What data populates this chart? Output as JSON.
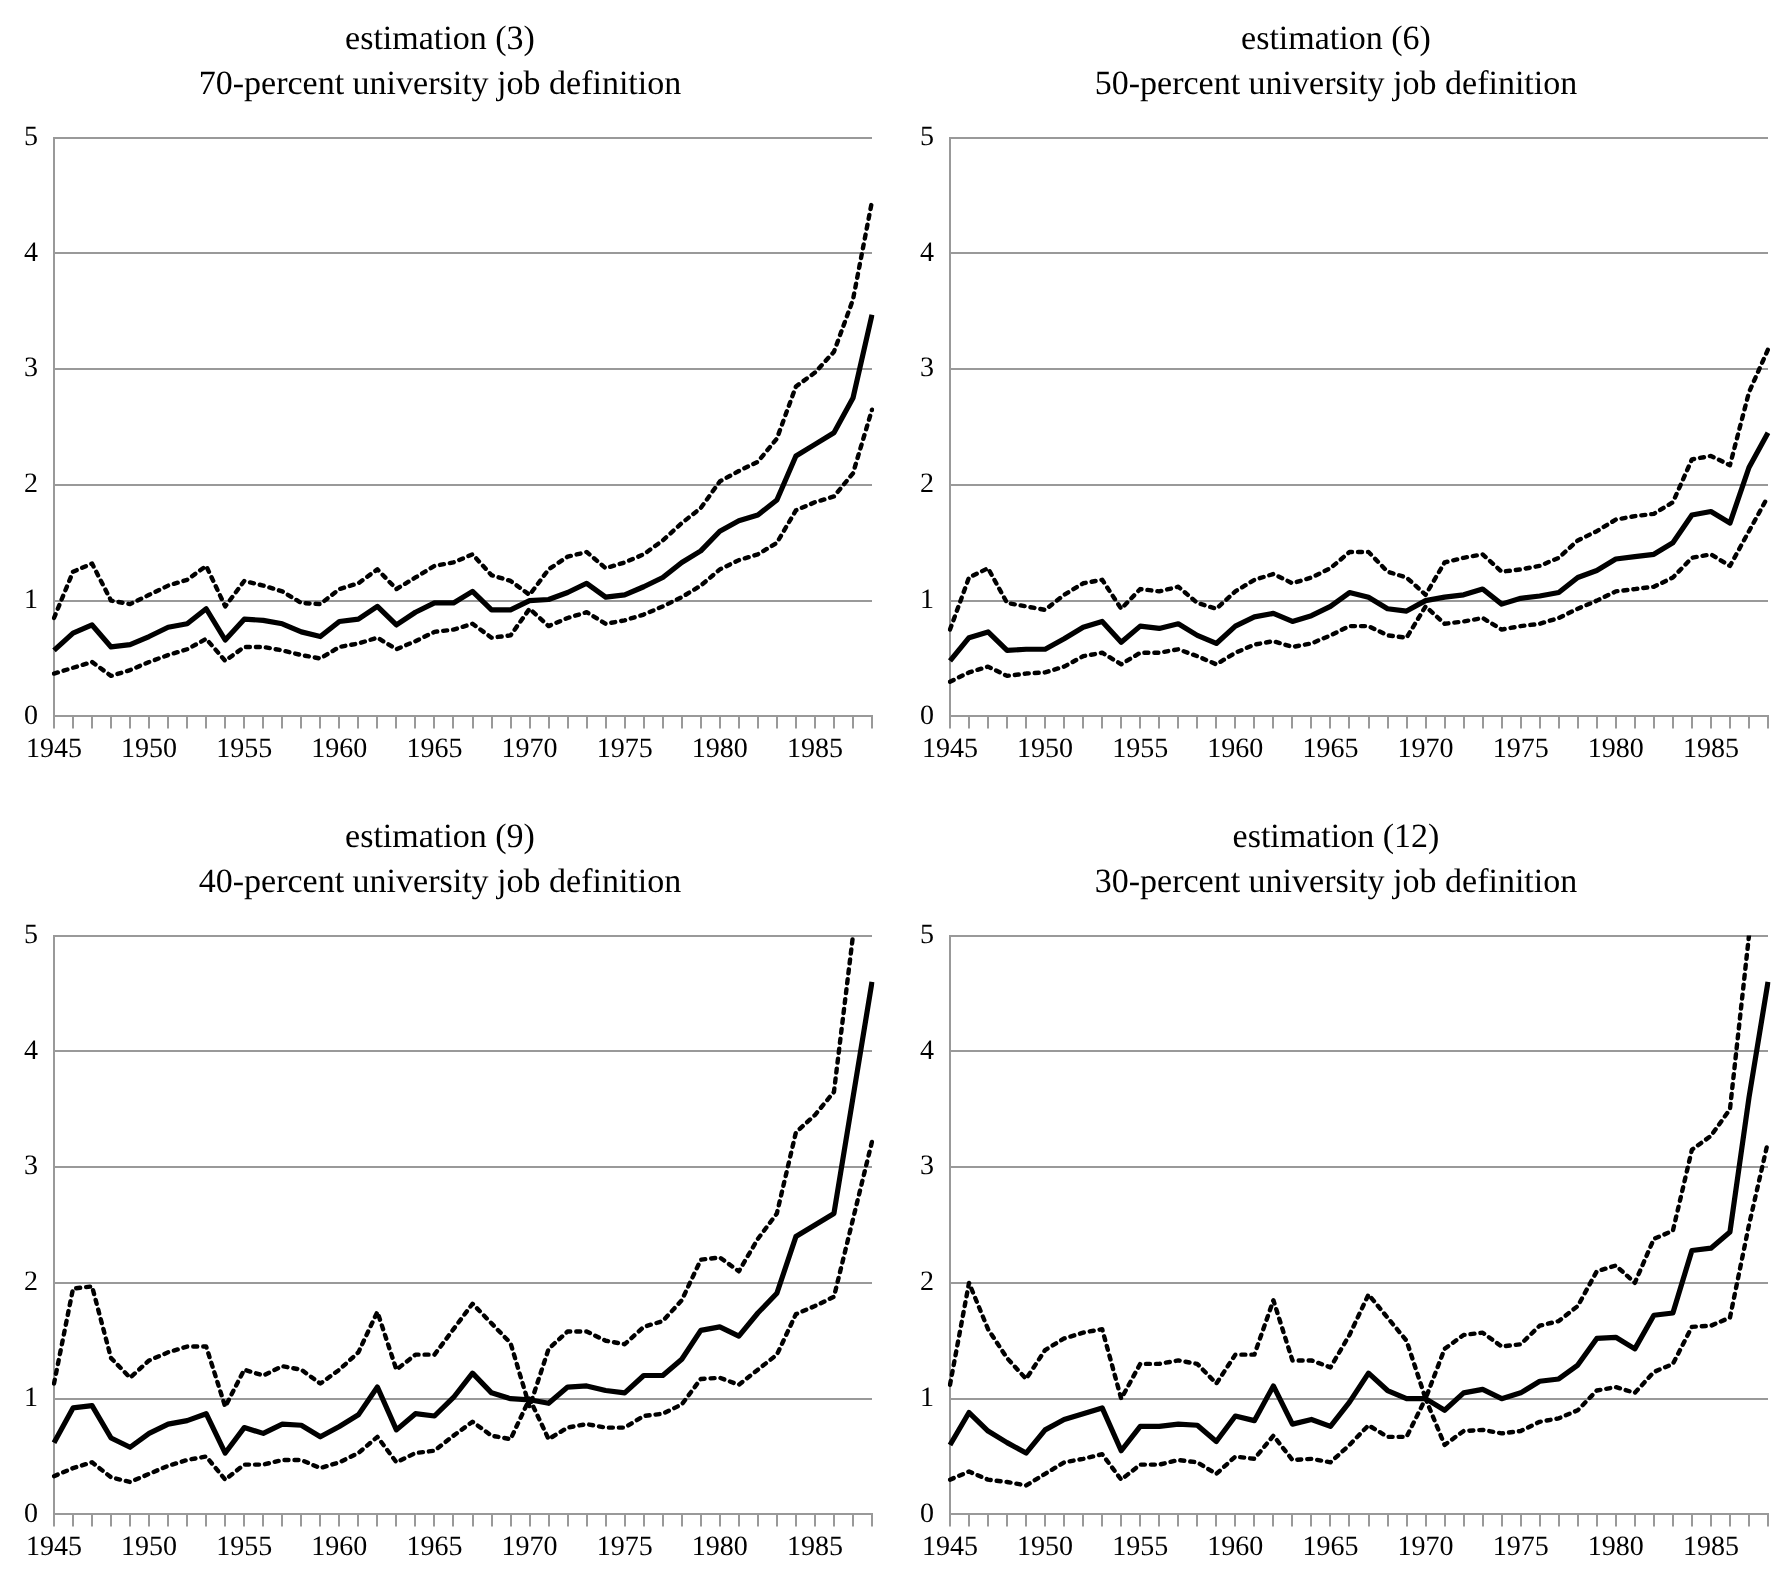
{
  "chart_data": [
    {
      "type": "line",
      "title": "estimation (3)",
      "subtitle": "70-percent university job definition",
      "categories": [
        "1945",
        null,
        null,
        null,
        null,
        "1950",
        null,
        null,
        null,
        null,
        "1955",
        null,
        null,
        null,
        null,
        "1960",
        null,
        null,
        null,
        null,
        "1965",
        null,
        null,
        null,
        null,
        "1970",
        null,
        null,
        null,
        null,
        "1975",
        null,
        null,
        null,
        null,
        "1980",
        null,
        null,
        null,
        null,
        "1985",
        null,
        null,
        null
      ],
      "ylim": [
        0,
        5
      ],
      "yticks": [
        0,
        1,
        2,
        3,
        4,
        5
      ],
      "grid": "y",
      "marker": "none",
      "series": [
        {
          "color": "#000000",
          "line_style": "solid",
          "values": [
            0.57,
            0.72,
            0.79,
            0.6,
            0.62,
            0.69,
            0.77,
            0.8,
            0.93,
            0.66,
            0.84,
            0.83,
            0.8,
            0.73,
            0.69,
            0.82,
            0.84,
            0.95,
            0.79,
            0.9,
            0.98,
            0.98,
            1.08,
            0.92,
            0.92,
            1.0,
            1.01,
            1.07,
            1.15,
            1.03,
            1.05,
            1.12,
            1.2,
            1.33,
            1.43,
            1.6,
            1.69,
            1.74,
            1.87,
            2.25,
            2.35,
            2.45,
            2.75,
            3.47
          ]
        },
        {
          "color": "#000000",
          "line_style": "dotted",
          "values": [
            0.85,
            1.25,
            1.32,
            1.0,
            0.97,
            1.05,
            1.13,
            1.18,
            1.3,
            0.95,
            1.17,
            1.13,
            1.08,
            0.98,
            0.97,
            1.1,
            1.15,
            1.27,
            1.1,
            1.2,
            1.3,
            1.33,
            1.4,
            1.22,
            1.17,
            1.05,
            1.27,
            1.38,
            1.42,
            1.28,
            1.33,
            1.4,
            1.52,
            1.67,
            1.8,
            2.03,
            2.12,
            2.2,
            2.4,
            2.85,
            2.97,
            3.15,
            3.6,
            4.45
          ]
        },
        {
          "color": "#000000",
          "line_style": "dotted",
          "values": [
            0.37,
            0.42,
            0.47,
            0.35,
            0.4,
            0.47,
            0.53,
            0.58,
            0.67,
            0.48,
            0.6,
            0.6,
            0.57,
            0.53,
            0.5,
            0.6,
            0.63,
            0.68,
            0.58,
            0.65,
            0.73,
            0.75,
            0.8,
            0.68,
            0.7,
            0.93,
            0.78,
            0.85,
            0.9,
            0.8,
            0.83,
            0.88,
            0.95,
            1.03,
            1.13,
            1.27,
            1.35,
            1.4,
            1.5,
            1.78,
            1.85,
            1.9,
            2.1,
            2.65
          ]
        }
      ]
    },
    {
      "type": "line",
      "title": "estimation (6)",
      "subtitle": "50-percent university job definition",
      "categories": [
        "1945",
        null,
        null,
        null,
        null,
        "1950",
        null,
        null,
        null,
        null,
        "1955",
        null,
        null,
        null,
        null,
        "1960",
        null,
        null,
        null,
        null,
        "1965",
        null,
        null,
        null,
        null,
        "1970",
        null,
        null,
        null,
        null,
        "1975",
        null,
        null,
        null,
        null,
        "1980",
        null,
        null,
        null,
        null,
        "1985",
        null,
        null,
        null
      ],
      "ylim": [
        0,
        5
      ],
      "yticks": [
        0,
        1,
        2,
        3,
        4,
        5
      ],
      "grid": "y",
      "marker": "none",
      "series": [
        {
          "color": "#000000",
          "line_style": "solid",
          "values": [
            0.48,
            0.68,
            0.73,
            0.57,
            0.58,
            0.58,
            0.67,
            0.77,
            0.82,
            0.64,
            0.78,
            0.76,
            0.8,
            0.7,
            0.63,
            0.78,
            0.86,
            0.89,
            0.82,
            0.87,
            0.95,
            1.07,
            1.03,
            0.93,
            0.91,
            1.0,
            1.03,
            1.05,
            1.1,
            0.97,
            1.02,
            1.04,
            1.07,
            1.2,
            1.26,
            1.36,
            1.38,
            1.4,
            1.5,
            1.74,
            1.77,
            1.67,
            2.15,
            2.45
          ]
        },
        {
          "color": "#000000",
          "line_style": "dotted",
          "values": [
            0.75,
            1.2,
            1.28,
            0.98,
            0.95,
            0.92,
            1.05,
            1.15,
            1.18,
            0.93,
            1.1,
            1.08,
            1.12,
            0.98,
            0.93,
            1.08,
            1.18,
            1.23,
            1.15,
            1.2,
            1.28,
            1.42,
            1.42,
            1.25,
            1.2,
            1.05,
            1.33,
            1.37,
            1.4,
            1.25,
            1.27,
            1.3,
            1.37,
            1.52,
            1.6,
            1.7,
            1.73,
            1.75,
            1.85,
            2.22,
            2.25,
            2.17,
            2.8,
            3.17
          ]
        },
        {
          "color": "#000000",
          "line_style": "dotted",
          "values": [
            0.3,
            0.38,
            0.43,
            0.35,
            0.37,
            0.38,
            0.43,
            0.52,
            0.55,
            0.45,
            0.55,
            0.55,
            0.58,
            0.52,
            0.45,
            0.55,
            0.62,
            0.65,
            0.6,
            0.63,
            0.7,
            0.78,
            0.78,
            0.7,
            0.68,
            0.95,
            0.8,
            0.82,
            0.85,
            0.75,
            0.78,
            0.8,
            0.85,
            0.93,
            1.0,
            1.08,
            1.1,
            1.12,
            1.2,
            1.37,
            1.4,
            1.3,
            1.6,
            1.9
          ]
        }
      ]
    },
    {
      "type": "line",
      "title": "estimation (9)",
      "subtitle": "40-percent university job definition",
      "categories": [
        "1945",
        null,
        null,
        null,
        null,
        "1950",
        null,
        null,
        null,
        null,
        "1955",
        null,
        null,
        null,
        null,
        "1960",
        null,
        null,
        null,
        null,
        "1965",
        null,
        null,
        null,
        null,
        "1970",
        null,
        null,
        null,
        null,
        "1975",
        null,
        null,
        null,
        null,
        "1980",
        null,
        null,
        null,
        null,
        "1985",
        null,
        null,
        null
      ],
      "ylim": [
        0,
        5
      ],
      "yticks": [
        0,
        1,
        2,
        3,
        4,
        5
      ],
      "grid": "y",
      "marker": "none",
      "series": [
        {
          "color": "#000000",
          "line_style": "solid",
          "values": [
            0.62,
            0.92,
            0.94,
            0.66,
            0.58,
            0.7,
            0.78,
            0.81,
            0.87,
            0.53,
            0.75,
            0.7,
            0.78,
            0.77,
            0.67,
            0.76,
            0.86,
            1.1,
            0.73,
            0.87,
            0.85,
            1.01,
            1.22,
            1.05,
            1.0,
            0.99,
            0.96,
            1.1,
            1.11,
            1.07,
            1.05,
            1.2,
            1.2,
            1.34,
            1.59,
            1.62,
            1.54,
            1.74,
            1.91,
            2.4,
            2.5,
            2.6,
            3.6,
            4.6
          ]
        },
        {
          "color": "#000000",
          "line_style": "dotted",
          "values": [
            1.13,
            1.95,
            1.97,
            1.35,
            1.18,
            1.33,
            1.4,
            1.45,
            1.45,
            0.93,
            1.25,
            1.2,
            1.28,
            1.25,
            1.13,
            1.25,
            1.4,
            1.75,
            1.25,
            1.38,
            1.38,
            1.6,
            1.82,
            1.65,
            1.48,
            0.93,
            1.43,
            1.58,
            1.58,
            1.5,
            1.47,
            1.62,
            1.67,
            1.85,
            2.2,
            2.22,
            2.1,
            2.38,
            2.6,
            3.3,
            3.45,
            3.65,
            5,
            null
          ]
        },
        {
          "color": "#000000",
          "line_style": "dotted",
          "values": [
            0.33,
            0.4,
            0.45,
            0.32,
            0.28,
            0.35,
            0.42,
            0.47,
            0.5,
            0.3,
            0.43,
            0.43,
            0.47,
            0.47,
            0.4,
            0.45,
            0.53,
            0.67,
            0.45,
            0.53,
            0.55,
            0.68,
            0.8,
            0.68,
            0.65,
            1.0,
            0.65,
            0.75,
            0.78,
            0.75,
            0.75,
            0.85,
            0.87,
            0.95,
            1.17,
            1.18,
            1.12,
            1.25,
            1.38,
            1.73,
            1.8,
            1.88,
            2.55,
            3.22
          ]
        }
      ]
    },
    {
      "type": "line",
      "title": "estimation (12)",
      "subtitle": "30-percent university job definition",
      "categories": [
        "1945",
        null,
        null,
        null,
        null,
        "1950",
        null,
        null,
        null,
        null,
        "1955",
        null,
        null,
        null,
        null,
        "1960",
        null,
        null,
        null,
        null,
        "1965",
        null,
        null,
        null,
        null,
        "1970",
        null,
        null,
        null,
        null,
        "1975",
        null,
        null,
        null,
        null,
        "1980",
        null,
        null,
        null,
        null,
        "1985",
        null,
        null,
        null
      ],
      "ylim": [
        0,
        5
      ],
      "yticks": [
        0,
        1,
        2,
        3,
        4,
        5
      ],
      "grid": "y",
      "marker": "none",
      "series": [
        {
          "color": "#000000",
          "line_style": "solid",
          "values": [
            0.6,
            0.88,
            0.72,
            0.62,
            0.53,
            0.73,
            0.82,
            0.87,
            0.92,
            0.55,
            0.76,
            0.76,
            0.78,
            0.77,
            0.63,
            0.85,
            0.81,
            1.11,
            0.78,
            0.82,
            0.76,
            0.97,
            1.22,
            1.07,
            1.0,
            1.0,
            0.9,
            1.05,
            1.08,
            1.0,
            1.05,
            1.15,
            1.17,
            1.29,
            1.52,
            1.53,
            1.43,
            1.72,
            1.74,
            2.28,
            2.3,
            2.44,
            3.6,
            4.6
          ]
        },
        {
          "color": "#000000",
          "line_style": "dotted",
          "values": [
            1.12,
            2.0,
            1.6,
            1.35,
            1.17,
            1.42,
            1.52,
            1.57,
            1.6,
            1.0,
            1.3,
            1.3,
            1.33,
            1.3,
            1.13,
            1.38,
            1.38,
            1.85,
            1.33,
            1.33,
            1.27,
            1.55,
            1.9,
            1.7,
            1.5,
            1.0,
            1.43,
            1.55,
            1.57,
            1.45,
            1.47,
            1.63,
            1.67,
            1.8,
            2.1,
            2.15,
            2.0,
            2.38,
            2.45,
            3.15,
            3.27,
            3.5,
            5,
            null
          ]
        },
        {
          "color": "#000000",
          "line_style": "dotted",
          "values": [
            0.3,
            0.37,
            0.3,
            0.28,
            0.25,
            0.35,
            0.45,
            0.48,
            0.52,
            0.3,
            0.43,
            0.43,
            0.47,
            0.45,
            0.35,
            0.5,
            0.48,
            0.68,
            0.47,
            0.48,
            0.45,
            0.6,
            0.77,
            0.67,
            0.67,
            1.0,
            0.6,
            0.72,
            0.73,
            0.7,
            0.72,
            0.8,
            0.83,
            0.9,
            1.07,
            1.1,
            1.05,
            1.23,
            1.3,
            1.62,
            1.63,
            1.7,
            2.5,
            3.22
          ]
        }
      ]
    }
  ]
}
